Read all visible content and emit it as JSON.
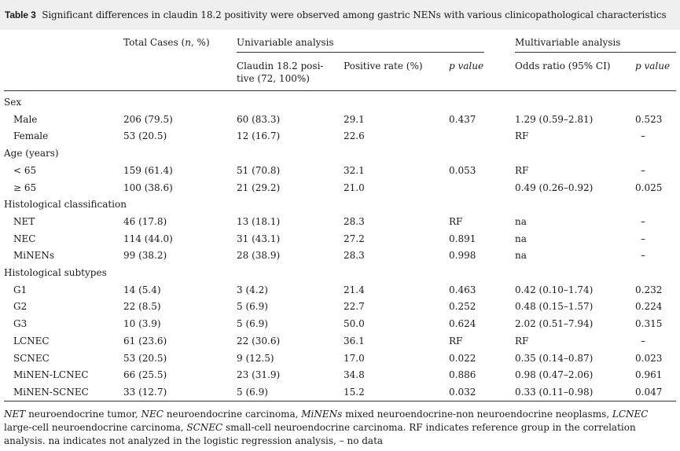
{
  "caption": {
    "label": "Table 3",
    "text": "Significant differences in claudin 18.2 positivity were observed among gastric NENs with various clinicopathological characteristics"
  },
  "headers": {
    "total_cases": "Total Cases (n, %)",
    "univariable": "Univariable analysis",
    "multivariable": "Multivariable analysis",
    "claudin_line1": "Claudin 18.2 posi-",
    "claudin_line2": "tive (72, 100%)",
    "positive_rate": "Positive rate (%)",
    "p_value_uni": "p value",
    "odds_ratio": "Odds ratio (95% CI)",
    "p_value_multi": "p value"
  },
  "rows": [
    {
      "label": "Sex",
      "kind": "group"
    },
    {
      "label": "Male",
      "total": "206 (79.5)",
      "claudin": "60 (83.3)",
      "rate": "29.1",
      "p_uni": "0.437",
      "or": "1.29 (0.59–2.81)",
      "p_multi": "0.523"
    },
    {
      "label": "Female",
      "total": "53 (20.5)",
      "claudin": "12 (16.7)",
      "rate": "22.6",
      "p_uni": "",
      "or": "RF",
      "p_multi": "–"
    },
    {
      "label": "Age (years)",
      "kind": "group"
    },
    {
      "label": "< 65",
      "total": "159 (61.4)",
      "claudin": "51 (70.8)",
      "rate": "32.1",
      "p_uni": "0.053",
      "or": "RF",
      "p_multi": "–"
    },
    {
      "label": "≥ 65",
      "total": "100 (38.6)",
      "claudin": "21 (29.2)",
      "rate": "21.0",
      "p_uni": "",
      "or": "0.49 (0.26–0.92)",
      "p_multi": "0.025"
    },
    {
      "label": "Histological classification",
      "kind": "group"
    },
    {
      "label": "NET",
      "total": "46 (17.8)",
      "claudin": "13 (18.1)",
      "rate": "28.3",
      "p_uni": "RF",
      "or": "na",
      "p_multi": "–"
    },
    {
      "label": "NEC",
      "total": "114 (44.0)",
      "claudin": "31 (43.1)",
      "rate": "27.2",
      "p_uni": "0.891",
      "or": "na",
      "p_multi": "–"
    },
    {
      "label": "MiNENs",
      "total": "99 (38.2)",
      "claudin": "28 (38.9)",
      "rate": "28.3",
      "p_uni": "0.998",
      "or": "na",
      "p_multi": "–"
    },
    {
      "label": "Histological subtypes",
      "kind": "group"
    },
    {
      "label": "G1",
      "total": "14 (5.4)",
      "claudin": "3 (4.2)",
      "rate": "21.4",
      "p_uni": "0.463",
      "or": "0.42 (0.10–1.74)",
      "p_multi": "0.232"
    },
    {
      "label": "G2",
      "total": "22 (8.5)",
      "claudin": "5 (6.9)",
      "rate": "22.7",
      "p_uni": "0.252",
      "or": "0.48 (0.15–1.57)",
      "p_multi": "0.224"
    },
    {
      "label": "G3",
      "total": "10 (3.9)",
      "claudin": "5 (6.9)",
      "rate": "50.0",
      "p_uni": "0.624",
      "or": "2.02 (0.51–7.94)",
      "p_multi": "0.315"
    },
    {
      "label": "LCNEC",
      "total": "61 (23.6)",
      "claudin": "22 (30.6)",
      "rate": "36.1",
      "p_uni": "RF",
      "or": "RF",
      "p_multi": "–"
    },
    {
      "label": "SCNEC",
      "total": "53 (20.5)",
      "claudin": "9 (12.5)",
      "rate": "17.0",
      "p_uni": "0.022",
      "or": "0.35 (0.14–0.87)",
      "p_multi": "0.023"
    },
    {
      "label": "MiNEN-LCNEC",
      "total": "66 (25.5)",
      "claudin": "23 (31.9)",
      "rate": "34.8",
      "p_uni": "0.886",
      "or": "0.98 (0.47–2.06)",
      "p_multi": "0.961"
    },
    {
      "label": "MiNEN-SCNEC",
      "total": "33 (12.7)",
      "claudin": "5 (6.9)",
      "rate": "15.2",
      "p_uni": "0.032",
      "or": "0.33 (0.11–0.98)",
      "p_multi": "0.047"
    }
  ],
  "footnote": {
    "net_abbr": "NET",
    "net_text": " neuroendocrine tumor, ",
    "nec_abbr": "NEC",
    "nec_text": " neuroendocrine carcinoma, ",
    "minens_abbr": "MiNENs",
    "minens_text": " mixed neuroendocrine-non neuroendocrine neoplasms, ",
    "lcnec_abbr": "LCNEC",
    "lcnec_text": " large-cell neuroendocrine carcinoma, ",
    "scnec_abbr": "SCNEC",
    "scnec_text": " small-cell neuroendocrine carcinoma. RF indicates reference group in the correlation analysis. na indicates not analyzed in the logistic regression analysis, – no data"
  }
}
